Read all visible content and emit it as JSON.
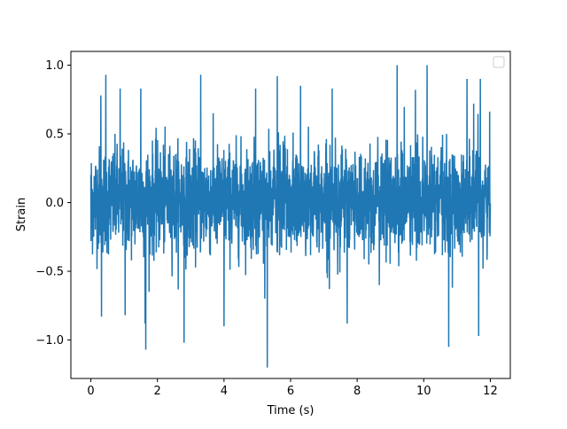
{
  "chart_data": {
    "type": "line",
    "title": "",
    "xlabel": "Time (s)",
    "ylabel": "Strain",
    "xlim": [
      -0.6,
      12.6
    ],
    "ylim": [
      -1.28,
      1.1
    ],
    "x_ticks": [
      0,
      2,
      4,
      6,
      8,
      10,
      12
    ],
    "y_ticks": [
      -1.0,
      -0.5,
      0.0,
      0.5,
      1.0
    ],
    "x_tick_labels": [
      "0",
      "2",
      "4",
      "6",
      "8",
      "10",
      "12"
    ],
    "y_tick_labels": [
      "−1.0",
      "−0.5",
      "0.0",
      "0.5",
      "1.0"
    ],
    "grid": false,
    "legend": {
      "placement": "top-right",
      "entries": []
    },
    "series": [
      {
        "color": "#1f77b4",
        "x_range": [
          0,
          12
        ],
        "typical_band": [
          -0.6,
          0.65
        ],
        "envelope_peaks": [
          {
            "x": 0.3,
            "y": 0.78
          },
          {
            "x": 0.32,
            "y": -0.83
          },
          {
            "x": 0.45,
            "y": 0.93
          },
          {
            "x": 0.88,
            "y": 0.83
          },
          {
            "x": 1.03,
            "y": -0.82
          },
          {
            "x": 1.5,
            "y": 0.83
          },
          {
            "x": 1.63,
            "y": -0.88
          },
          {
            "x": 1.65,
            "y": -1.07
          },
          {
            "x": 2.8,
            "y": -1.02
          },
          {
            "x": 3.3,
            "y": 0.93
          },
          {
            "x": 4.0,
            "y": -0.9
          },
          {
            "x": 4.95,
            "y": 0.83
          },
          {
            "x": 5.3,
            "y": -1.2
          },
          {
            "x": 5.6,
            "y": 0.92
          },
          {
            "x": 6.3,
            "y": 0.85
          },
          {
            "x": 7.25,
            "y": 0.83
          },
          {
            "x": 7.7,
            "y": -0.88
          },
          {
            "x": 9.2,
            "y": 1.0
          },
          {
            "x": 9.75,
            "y": 0.82
          },
          {
            "x": 10.1,
            "y": 1.0
          },
          {
            "x": 10.75,
            "y": -1.05
          },
          {
            "x": 11.3,
            "y": 0.9
          },
          {
            "x": 11.5,
            "y": 0.72
          },
          {
            "x": 11.65,
            "y": -0.97
          },
          {
            "x": 11.7,
            "y": 0.9
          }
        ]
      }
    ]
  }
}
